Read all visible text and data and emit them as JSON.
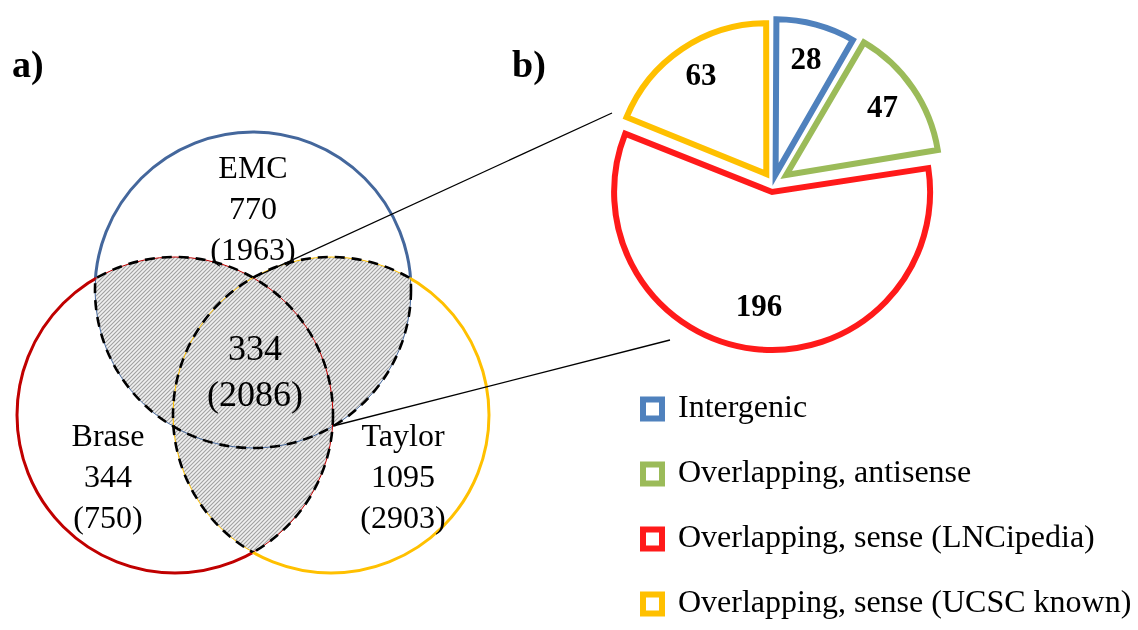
{
  "chart_data": [
    {
      "type": "other",
      "title": "a)",
      "categories": [
        "EMC",
        "Brase",
        "Taylor"
      ],
      "colors": [
        "#44679c",
        "#c00000",
        "#ffc000"
      ],
      "data_labels": true,
      "series": [
        {
          "values": [
            770,
            344,
            1095
          ]
        },
        {
          "values": [
            1963,
            750,
            2903
          ],
          "value_labels": [
            "(1963)",
            "(750)",
            "(2903)"
          ]
        }
      ],
      "annotations": [
        "334",
        "(2086)"
      ]
    },
    {
      "type": "pie",
      "title": "b)",
      "categories": [
        "Intergenic",
        "Overlapping, antisense",
        "Overlapping, sense (LNCipedia)",
        "Overlapping, sense (UCSC known)"
      ],
      "values": [
        28,
        47,
        196,
        63
      ],
      "colors": [
        "#4f81bd",
        "#9bbb59",
        "#ff1a1a",
        "#ffc000"
      ],
      "data_labels": true,
      "legend": "bottom"
    }
  ]
}
